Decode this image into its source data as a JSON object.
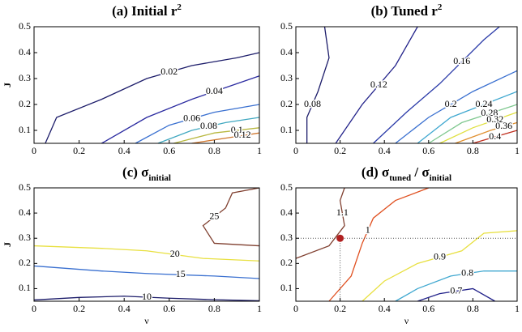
{
  "chart_data": [
    {
      "type": "contour",
      "title": [
        "(a) Initial r",
        "2"
      ],
      "title_styles": [
        "normal",
        "super"
      ],
      "ylabel": "J",
      "xlim": [
        0,
        1
      ],
      "ylim": [
        0.05,
        0.5
      ],
      "xticks": [
        0,
        0.2,
        0.4,
        0.6,
        0.8,
        1
      ],
      "yticks": [
        0.1,
        0.2,
        0.3,
        0.4,
        0.5
      ],
      "contours": [
        {
          "level": 0.02,
          "color": "#1c1c6a",
          "x": [
            0.05,
            0.1,
            0.3,
            0.5,
            0.7,
            0.9,
            1
          ],
          "y": [
            0.05,
            0.15,
            0.22,
            0.3,
            0.35,
            0.38,
            0.4
          ]
        },
        {
          "level": 0.04,
          "color": "#2a2aa0",
          "x": [
            0.3,
            0.5,
            0.7,
            0.9,
            1
          ],
          "y": [
            0.05,
            0.15,
            0.22,
            0.28,
            0.31
          ]
        },
        {
          "level": 0.06,
          "color": "#3a70d0",
          "x": [
            0.45,
            0.6,
            0.8,
            1
          ],
          "y": [
            0.05,
            0.12,
            0.17,
            0.2
          ]
        },
        {
          "level": 0.08,
          "color": "#40a8c0",
          "x": [
            0.55,
            0.7,
            0.85,
            1
          ],
          "y": [
            0.05,
            0.1,
            0.13,
            0.15
          ]
        },
        {
          "level": 0.1,
          "color": "#b8b840",
          "x": [
            0.62,
            0.8,
            1
          ],
          "y": [
            0.05,
            0.09,
            0.11
          ]
        },
        {
          "level": 0.12,
          "color": "#d07830",
          "x": [
            0.7,
            0.85,
            1
          ],
          "y": [
            0.05,
            0.07,
            0.09
          ]
        }
      ]
    },
    {
      "type": "contour",
      "title": [
        "(b) Tuned r",
        "2"
      ],
      "title_styles": [
        "normal",
        "super"
      ],
      "xlim": [
        0,
        1
      ],
      "ylim": [
        0.05,
        0.5
      ],
      "xticks": [
        0,
        0.2,
        0.4,
        0.6,
        0.8,
        1
      ],
      "yticks": [
        0.1,
        0.2,
        0.3,
        0.4,
        0.5
      ],
      "contours": [
        {
          "level": 0.08,
          "color": "#1c1c6a",
          "x": [
            0.13,
            0.15,
            0.1,
            0.05,
            0.05
          ],
          "y": [
            0.5,
            0.38,
            0.25,
            0.15,
            0.05
          ]
        },
        {
          "level": 0.12,
          "color": "#22228a",
          "x": [
            0.18,
            0.3,
            0.45,
            0.55
          ],
          "y": [
            0.05,
            0.2,
            0.35,
            0.5
          ]
        },
        {
          "level": 0.16,
          "color": "#2a3aa8",
          "x": [
            0.35,
            0.5,
            0.65,
            0.85,
            0.92
          ],
          "y": [
            0.05,
            0.17,
            0.28,
            0.45,
            0.5
          ]
        },
        {
          "level": 0.2,
          "color": "#3a70d0",
          "x": [
            0.45,
            0.6,
            0.8,
            1
          ],
          "y": [
            0.05,
            0.15,
            0.25,
            0.33
          ]
        },
        {
          "level": 0.24,
          "color": "#40a8d0",
          "x": [
            0.55,
            0.7,
            1
          ],
          "y": [
            0.05,
            0.15,
            0.25
          ]
        },
        {
          "level": 0.28,
          "color": "#80c890",
          "x": [
            0.6,
            0.75,
            1
          ],
          "y": [
            0.05,
            0.13,
            0.2
          ]
        },
        {
          "level": 0.32,
          "color": "#e0e040",
          "x": [
            0.65,
            0.8,
            1
          ],
          "y": [
            0.05,
            0.11,
            0.17
          ]
        },
        {
          "level": 0.36,
          "color": "#e09030",
          "x": [
            0.72,
            0.88,
            1
          ],
          "y": [
            0.05,
            0.1,
            0.13
          ]
        },
        {
          "level": 0.4,
          "color": "#c03020",
          "x": [
            0.8,
            1
          ],
          "y": [
            0.05,
            0.1
          ]
        }
      ]
    },
    {
      "type": "contour",
      "title": [
        "(c) σ",
        "initial"
      ],
      "title_styles": [
        "normal",
        "sub"
      ],
      "ylabel": "J",
      "xlabel": "ν",
      "xlim": [
        0,
        1
      ],
      "ylim": [
        0.05,
        0.5
      ],
      "xticks": [
        0,
        0.2,
        0.4,
        0.6,
        0.8,
        1
      ],
      "yticks": [
        0.1,
        0.2,
        0.3,
        0.4,
        0.5
      ],
      "contours": [
        {
          "level": 25,
          "color": "#804030",
          "x": [
            1,
            0.88,
            0.85,
            0.75,
            0.8,
            1
          ],
          "y": [
            0.5,
            0.48,
            0.42,
            0.35,
            0.28,
            0.27
          ]
        },
        {
          "level": 20,
          "color": "#e8e040",
          "x": [
            0,
            0.3,
            0.5,
            0.75,
            1
          ],
          "y": [
            0.27,
            0.26,
            0.25,
            0.22,
            0.21
          ]
        },
        {
          "level": 15,
          "color": "#3a70d0",
          "x": [
            0,
            0.3,
            0.5,
            0.8,
            1
          ],
          "y": [
            0.19,
            0.17,
            0.16,
            0.15,
            0.14
          ]
        },
        {
          "level": 10,
          "color": "#1c1c6a",
          "x": [
            0,
            0.2,
            0.4,
            0.6,
            0.8,
            1
          ],
          "y": [
            0.055,
            0.065,
            0.07,
            0.062,
            0.056,
            0.052
          ]
        }
      ]
    },
    {
      "type": "contour",
      "title": [
        "(d) σ",
        "tuned",
        " / σ",
        "initial"
      ],
      "title_styles": [
        "normal",
        "sub",
        "normal",
        "sub"
      ],
      "xlabel": "ν",
      "xlim": [
        0,
        1
      ],
      "ylim": [
        0.05,
        0.5
      ],
      "xticks": [
        0,
        0.2,
        0.4,
        0.6,
        0.8,
        1
      ],
      "yticks": [
        0.1,
        0.2,
        0.3,
        0.4,
        0.5
      ],
      "marker": {
        "x": 0.2,
        "y": 0.3,
        "color": "#b02020"
      },
      "contours": [
        {
          "level": 1.1,
          "color": "#804030",
          "x": [
            0,
            0.15,
            0.22,
            0.2,
            0.22
          ],
          "y": [
            0.22,
            0.27,
            0.35,
            0.45,
            0.5
          ]
        },
        {
          "level": 1,
          "color": "#e05020",
          "x": [
            0.15,
            0.25,
            0.3,
            0.35,
            0.45,
            0.6
          ],
          "y": [
            0.05,
            0.15,
            0.28,
            0.38,
            0.45,
            0.5
          ]
        },
        {
          "level": 0.9,
          "color": "#e8e040",
          "x": [
            0.3,
            0.4,
            0.55,
            0.75,
            0.85,
            1
          ],
          "y": [
            0.05,
            0.13,
            0.2,
            0.25,
            0.32,
            0.33
          ]
        },
        {
          "level": 0.8,
          "color": "#40a8d0",
          "x": [
            0.45,
            0.55,
            0.7,
            0.85,
            1
          ],
          "y": [
            0.05,
            0.1,
            0.15,
            0.17,
            0.17
          ]
        },
        {
          "level": 0.7,
          "color": "#22228a",
          "x": [
            0.55,
            0.65,
            0.8,
            0.9
          ],
          "y": [
            0.05,
            0.08,
            0.1,
            0.05
          ]
        }
      ]
    }
  ]
}
